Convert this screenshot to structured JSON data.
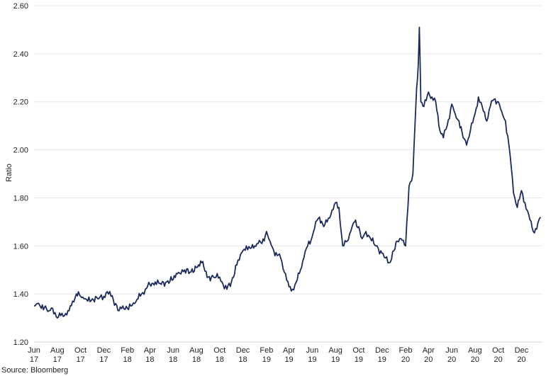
{
  "chart_data": {
    "type": "line",
    "title": "",
    "ylabel": "Ratio",
    "xlabel": "",
    "ylim": [
      1.2,
      2.6
    ],
    "y_ticks": [
      "1.20",
      "1.40",
      "1.60",
      "1.80",
      "2.00",
      "2.20",
      "2.40",
      "2.60"
    ],
    "y_tick_values": [
      1.2,
      1.4,
      1.6,
      1.8,
      2.0,
      2.2,
      2.4,
      2.6
    ],
    "grid": true,
    "x_tick_labels": [
      [
        "Jun",
        "17"
      ],
      [
        "Aug",
        "17"
      ],
      [
        "Oct",
        "17"
      ],
      [
        "Dec",
        "17"
      ],
      [
        "Feb",
        "18"
      ],
      [
        "Apr",
        "18"
      ],
      [
        "Jun",
        "18"
      ],
      [
        "Aug",
        "18"
      ],
      [
        "Oct",
        "18"
      ],
      [
        "Dec",
        "18"
      ],
      [
        "Feb",
        "19"
      ],
      [
        "Apr",
        "19"
      ],
      [
        "Jun",
        "19"
      ],
      [
        "Aug",
        "19"
      ],
      [
        "Oct",
        "19"
      ],
      [
        "Dec",
        "19"
      ],
      [
        "Feb",
        "20"
      ],
      [
        "Apr",
        "20"
      ],
      [
        "Jun",
        "20"
      ],
      [
        "Aug",
        "20"
      ],
      [
        "Oct",
        "20"
      ],
      [
        "Dec",
        "20"
      ]
    ],
    "x_tick_dates": [
      "2017-06",
      "2017-08",
      "2017-10",
      "2017-12",
      "2018-02",
      "2018-04",
      "2018-06",
      "2018-08",
      "2018-10",
      "2018-12",
      "2019-02",
      "2019-04",
      "2019-06",
      "2019-08",
      "2019-10",
      "2019-12",
      "2020-02",
      "2020-04",
      "2020-06",
      "2020-08",
      "2020-10",
      "2020-12"
    ],
    "series": [
      {
        "color": "#1b2a5c",
        "points": [
          [
            "2017-06-01",
            1.35
          ],
          [
            "2017-06-10",
            1.36
          ],
          [
            "2017-06-20",
            1.34
          ],
          [
            "2017-07-01",
            1.35
          ],
          [
            "2017-07-10",
            1.33
          ],
          [
            "2017-07-20",
            1.34
          ],
          [
            "2017-08-01",
            1.3
          ],
          [
            "2017-08-10",
            1.31
          ],
          [
            "2017-08-20",
            1.31
          ],
          [
            "2017-09-01",
            1.33
          ],
          [
            "2017-09-10",
            1.37
          ],
          [
            "2017-09-20",
            1.4
          ],
          [
            "2017-10-01",
            1.39
          ],
          [
            "2017-10-10",
            1.38
          ],
          [
            "2017-10-20",
            1.37
          ],
          [
            "2017-11-01",
            1.38
          ],
          [
            "2017-11-15",
            1.38
          ],
          [
            "2017-12-01",
            1.39
          ],
          [
            "2017-12-10",
            1.41
          ],
          [
            "2017-12-20",
            1.39
          ],
          [
            "2018-01-01",
            1.36
          ],
          [
            "2018-01-10",
            1.33
          ],
          [
            "2018-01-20",
            1.35
          ],
          [
            "2018-02-01",
            1.34
          ],
          [
            "2018-02-10",
            1.35
          ],
          [
            "2018-02-20",
            1.36
          ],
          [
            "2018-03-01",
            1.38
          ],
          [
            "2018-03-10",
            1.4
          ],
          [
            "2018-03-20",
            1.42
          ],
          [
            "2018-04-01",
            1.44
          ],
          [
            "2018-04-15",
            1.45
          ],
          [
            "2018-05-01",
            1.44
          ],
          [
            "2018-05-15",
            1.45
          ],
          [
            "2018-06-01",
            1.46
          ],
          [
            "2018-06-15",
            1.49
          ],
          [
            "2018-07-01",
            1.5
          ],
          [
            "2018-07-15",
            1.49
          ],
          [
            "2018-08-01",
            1.51
          ],
          [
            "2018-08-15",
            1.53
          ],
          [
            "2018-09-01",
            1.47
          ],
          [
            "2018-09-15",
            1.47
          ],
          [
            "2018-10-01",
            1.47
          ],
          [
            "2018-10-10",
            1.44
          ],
          [
            "2018-10-20",
            1.42
          ],
          [
            "2018-11-01",
            1.45
          ],
          [
            "2018-11-15",
            1.52
          ],
          [
            "2018-12-01",
            1.58
          ],
          [
            "2018-12-10",
            1.6
          ],
          [
            "2018-12-20",
            1.59
          ],
          [
            "2019-01-01",
            1.6
          ],
          [
            "2019-01-10",
            1.61
          ],
          [
            "2019-01-20",
            1.61
          ],
          [
            "2019-02-01",
            1.66
          ],
          [
            "2019-02-10",
            1.62
          ],
          [
            "2019-02-20",
            1.58
          ],
          [
            "2019-03-01",
            1.56
          ],
          [
            "2019-03-10",
            1.55
          ],
          [
            "2019-03-20",
            1.49
          ],
          [
            "2019-04-01",
            1.43
          ],
          [
            "2019-04-10",
            1.42
          ],
          [
            "2019-04-20",
            1.45
          ],
          [
            "2019-05-01",
            1.5
          ],
          [
            "2019-05-10",
            1.55
          ],
          [
            "2019-05-20",
            1.6
          ],
          [
            "2019-06-01",
            1.64
          ],
          [
            "2019-06-10",
            1.7
          ],
          [
            "2019-06-20",
            1.72
          ],
          [
            "2019-07-01",
            1.68
          ],
          [
            "2019-07-10",
            1.7
          ],
          [
            "2019-07-20",
            1.73
          ],
          [
            "2019-08-01",
            1.78
          ],
          [
            "2019-08-10",
            1.76
          ],
          [
            "2019-08-20",
            1.6
          ],
          [
            "2019-09-01",
            1.62
          ],
          [
            "2019-09-10",
            1.66
          ],
          [
            "2019-09-20",
            1.7
          ],
          [
            "2019-10-01",
            1.68
          ],
          [
            "2019-10-10",
            1.63
          ],
          [
            "2019-10-20",
            1.66
          ],
          [
            "2019-11-01",
            1.63
          ],
          [
            "2019-11-15",
            1.6
          ],
          [
            "2019-12-01",
            1.57
          ],
          [
            "2019-12-10",
            1.55
          ],
          [
            "2019-12-20",
            1.53
          ],
          [
            "2020-01-01",
            1.58
          ],
          [
            "2020-01-10",
            1.62
          ],
          [
            "2020-01-20",
            1.63
          ],
          [
            "2020-02-01",
            1.6
          ],
          [
            "2020-02-10",
            1.85
          ],
          [
            "2020-02-20",
            1.9
          ],
          [
            "2020-03-01",
            2.26
          ],
          [
            "2020-03-05",
            2.35
          ],
          [
            "2020-03-08",
            2.51
          ],
          [
            "2020-03-12",
            2.2
          ],
          [
            "2020-03-20",
            2.18
          ],
          [
            "2020-04-01",
            2.24
          ],
          [
            "2020-04-10",
            2.22
          ],
          [
            "2020-04-20",
            2.2
          ],
          [
            "2020-05-01",
            2.08
          ],
          [
            "2020-05-10",
            2.05
          ],
          [
            "2020-05-20",
            2.1
          ],
          [
            "2020-06-01",
            2.19
          ],
          [
            "2020-06-10",
            2.15
          ],
          [
            "2020-06-20",
            2.12
          ],
          [
            "2020-07-01",
            2.05
          ],
          [
            "2020-07-10",
            2.02
          ],
          [
            "2020-07-20",
            2.08
          ],
          [
            "2020-08-01",
            2.15
          ],
          [
            "2020-08-10",
            2.22
          ],
          [
            "2020-08-20",
            2.18
          ],
          [
            "2020-09-01",
            2.12
          ],
          [
            "2020-09-10",
            2.18
          ],
          [
            "2020-09-20",
            2.21
          ],
          [
            "2020-10-01",
            2.2
          ],
          [
            "2020-10-10",
            2.16
          ],
          [
            "2020-10-20",
            2.12
          ],
          [
            "2020-11-01",
            1.98
          ],
          [
            "2020-11-10",
            1.82
          ],
          [
            "2020-11-20",
            1.76
          ],
          [
            "2020-12-01",
            1.83
          ],
          [
            "2020-12-10",
            1.78
          ],
          [
            "2020-12-20",
            1.73
          ],
          [
            "2021-01-01",
            1.66
          ],
          [
            "2021-01-10",
            1.67
          ],
          [
            "2021-01-20",
            1.72
          ]
        ]
      }
    ]
  },
  "footer": {
    "source": "Source: Bloomberg"
  }
}
